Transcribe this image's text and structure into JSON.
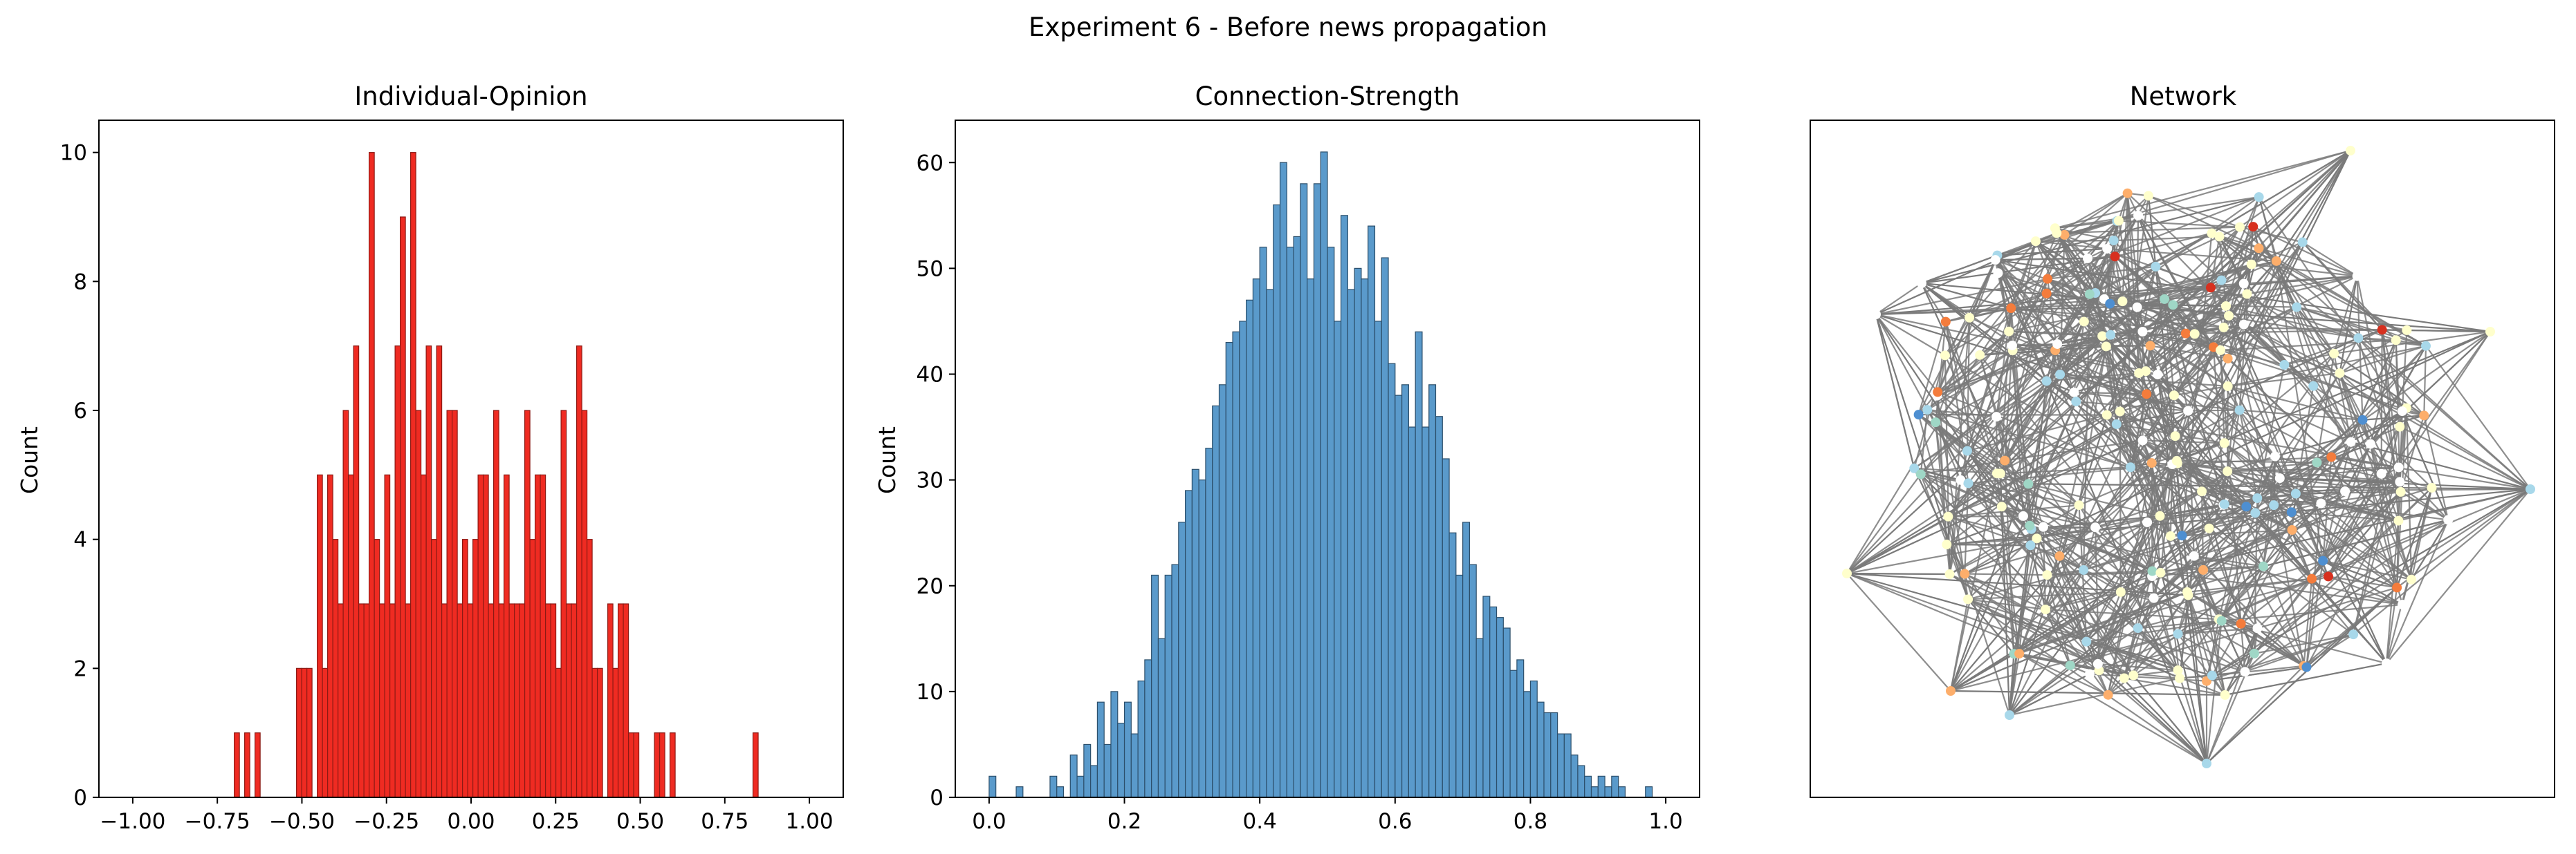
{
  "figure": {
    "suptitle": "Experiment 6 - Before news propagation"
  },
  "chart_data": [
    {
      "type": "bar",
      "title": "Individual-Opinion",
      "xlabel": "",
      "ylabel": "Count",
      "xlim": [
        -1.1,
        1.1
      ],
      "ylim": [
        0,
        10.5
      ],
      "xticks": [
        -1.0,
        -0.75,
        -0.5,
        -0.25,
        0.0,
        0.25,
        0.5,
        0.75,
        1.0
      ],
      "xtick_labels": [
        "−1.00",
        "−0.75",
        "−0.50",
        "−0.25",
        "0.00",
        "0.25",
        "0.50",
        "0.75",
        "1.00"
      ],
      "yticks": [
        0,
        2,
        4,
        6,
        8,
        10
      ],
      "ytick_labels": [
        "0",
        "2",
        "4",
        "6",
        "8",
        "10"
      ],
      "bin_edges": [
        -0.7,
        0.8333
      ],
      "bin_width": 0.015333,
      "values": [
        1,
        0,
        1,
        0,
        1,
        0,
        0,
        0,
        0,
        0,
        0,
        0,
        2,
        2,
        2,
        0,
        5,
        2,
        5,
        4,
        3,
        6,
        5,
        7,
        3,
        3,
        10,
        4,
        3,
        5,
        3,
        7,
        9,
        3,
        10,
        6,
        5,
        7,
        4,
        7,
        3,
        6,
        6,
        3,
        4,
        3,
        4,
        5,
        5,
        3,
        6,
        3,
        5,
        3,
        3,
        3,
        6,
        4,
        5,
        5,
        3,
        3,
        2,
        6,
        3,
        3,
        7,
        6,
        4,
        2,
        2,
        0,
        3,
        2,
        3,
        3,
        1,
        1,
        0,
        0,
        0,
        1,
        1,
        0,
        1,
        0,
        0,
        0,
        0,
        0,
        0,
        0,
        0,
        0,
        0,
        0,
        0,
        0,
        0,
        0,
        1
      ],
      "color": "#ef2b22",
      "edge_color": "#8c1a14",
      "grid": false
    },
    {
      "type": "bar",
      "title": "Connection-Strength",
      "xlabel": "",
      "ylabel": "Count",
      "xlim": [
        -0.05,
        1.05
      ],
      "ylim": [
        0,
        64
      ],
      "xticks": [
        0.0,
        0.2,
        0.4,
        0.6,
        0.8,
        1.0
      ],
      "xtick_labels": [
        "0.0",
        "0.2",
        "0.4",
        "0.6",
        "0.8",
        "1.0"
      ],
      "yticks": [
        0,
        10,
        20,
        30,
        40,
        50,
        60
      ],
      "ytick_labels": [
        "0",
        "10",
        "20",
        "30",
        "40",
        "50",
        "60"
      ],
      "bin_edges": [
        0.0,
        1.0
      ],
      "bin_width": 0.01,
      "values": [
        2,
        0,
        0,
        0,
        1,
        0,
        0,
        0,
        0,
        2,
        1,
        0,
        4,
        2,
        5,
        3,
        9,
        5,
        10,
        7,
        9,
        6,
        11,
        13,
        21,
        15,
        21,
        22,
        26,
        29,
        31,
        30,
        33,
        37,
        39,
        43,
        44,
        45,
        47,
        49,
        52,
        48,
        56,
        60,
        52,
        53,
        58,
        49,
        58,
        61,
        52,
        45,
        55,
        48,
        50,
        49,
        54,
        45,
        51,
        41,
        38,
        39,
        35,
        44,
        35,
        39,
        36,
        32,
        25,
        21,
        26,
        22,
        15,
        19,
        18,
        17,
        16,
        12,
        13,
        10,
        11,
        9,
        8,
        8,
        6,
        6,
        4,
        3,
        2,
        1,
        2,
        1,
        2,
        1,
        0,
        0,
        0,
        1,
        0,
        0
      ],
      "color": "#5a9acb",
      "edge_color": "#2c4f6b",
      "grid": false
    },
    {
      "type": "network",
      "title": "Network",
      "node_colormap": [
        "#ffffcc",
        "#ffffff",
        "#a8d8ea",
        "#9fd7c6",
        "#fdae6b",
        "#f47c3c",
        "#4e8fd1",
        "#d7301f"
      ],
      "edge_color": "#7a7a7a"
    }
  ]
}
